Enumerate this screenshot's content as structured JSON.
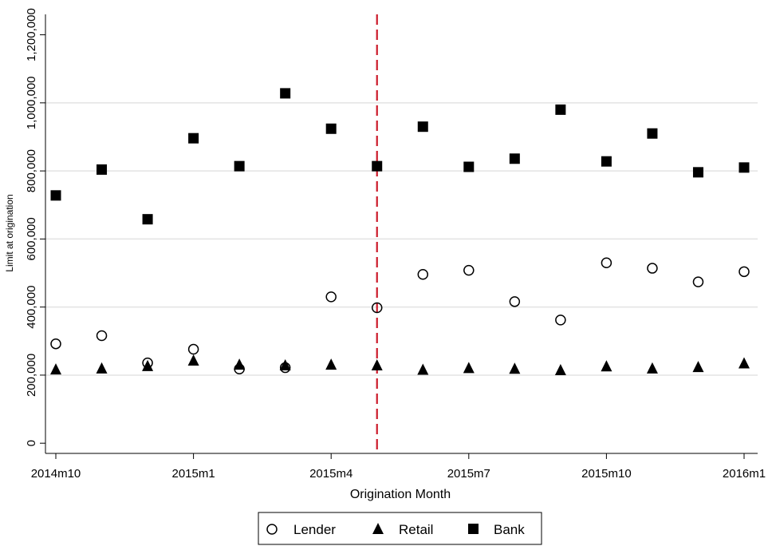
{
  "chart_data": {
    "type": "scatter",
    "xlabel": "Origination Month",
    "ylabel": "Limit at origination",
    "categories": [
      "2014m10",
      "2014m11",
      "2014m12",
      "2015m1",
      "2015m2",
      "2015m3",
      "2015m4",
      "2015m5",
      "2015m6",
      "2015m7",
      "2015m8",
      "2015m9",
      "2015m10",
      "2015m11",
      "2015m12",
      "2016m1"
    ],
    "xticks": [
      {
        "index": 0,
        "label": "2014m10"
      },
      {
        "index": 3,
        "label": "2015m1"
      },
      {
        "index": 6,
        "label": "2015m4"
      },
      {
        "index": 9,
        "label": "2015m7"
      },
      {
        "index": 12,
        "label": "2015m10"
      },
      {
        "index": 15,
        "label": "2016m1"
      }
    ],
    "yticks": [
      {
        "value": 0,
        "label": "0"
      },
      {
        "value": 200000,
        "label": "200,000"
      },
      {
        "value": 400000,
        "label": "400,000"
      },
      {
        "value": 600000,
        "label": "600,000"
      },
      {
        "value": 800000,
        "label": "800,000"
      },
      {
        "value": 1000000,
        "label": "1,000,000"
      },
      {
        "value": 1200000,
        "label": "1,200,000"
      }
    ],
    "ylim": [
      -30000,
      1260000
    ],
    "xlim": [
      -0.25,
      15.25
    ],
    "grid": true,
    "reference_line": {
      "x_index": 7,
      "color": "#cc1a2a",
      "style": "dashed"
    },
    "series": [
      {
        "name": "Lender",
        "marker": "circle-hollow",
        "color": "#000000",
        "values": [
          292000,
          316000,
          236000,
          276000,
          218000,
          222000,
          430000,
          398000,
          496000,
          508000,
          416000,
          362000,
          530000,
          514000,
          474000,
          504000
        ]
      },
      {
        "name": "Retail",
        "marker": "triangle",
        "color": "#000000",
        "values": [
          216000,
          219000,
          226000,
          242000,
          230000,
          228000,
          230000,
          228000,
          215000,
          220000,
          218000,
          214000,
          225000,
          219000,
          223000,
          234000
        ]
      },
      {
        "name": "Bank",
        "marker": "square",
        "color": "#000000",
        "values": [
          728000,
          804000,
          658000,
          896000,
          814000,
          1028000,
          924000,
          814000,
          930000,
          812000,
          836000,
          980000,
          828000,
          910000,
          796000,
          810000
        ]
      }
    ],
    "legend": {
      "placement": "bottom-center",
      "items": [
        "Lender",
        "Retail",
        "Bank"
      ]
    }
  }
}
